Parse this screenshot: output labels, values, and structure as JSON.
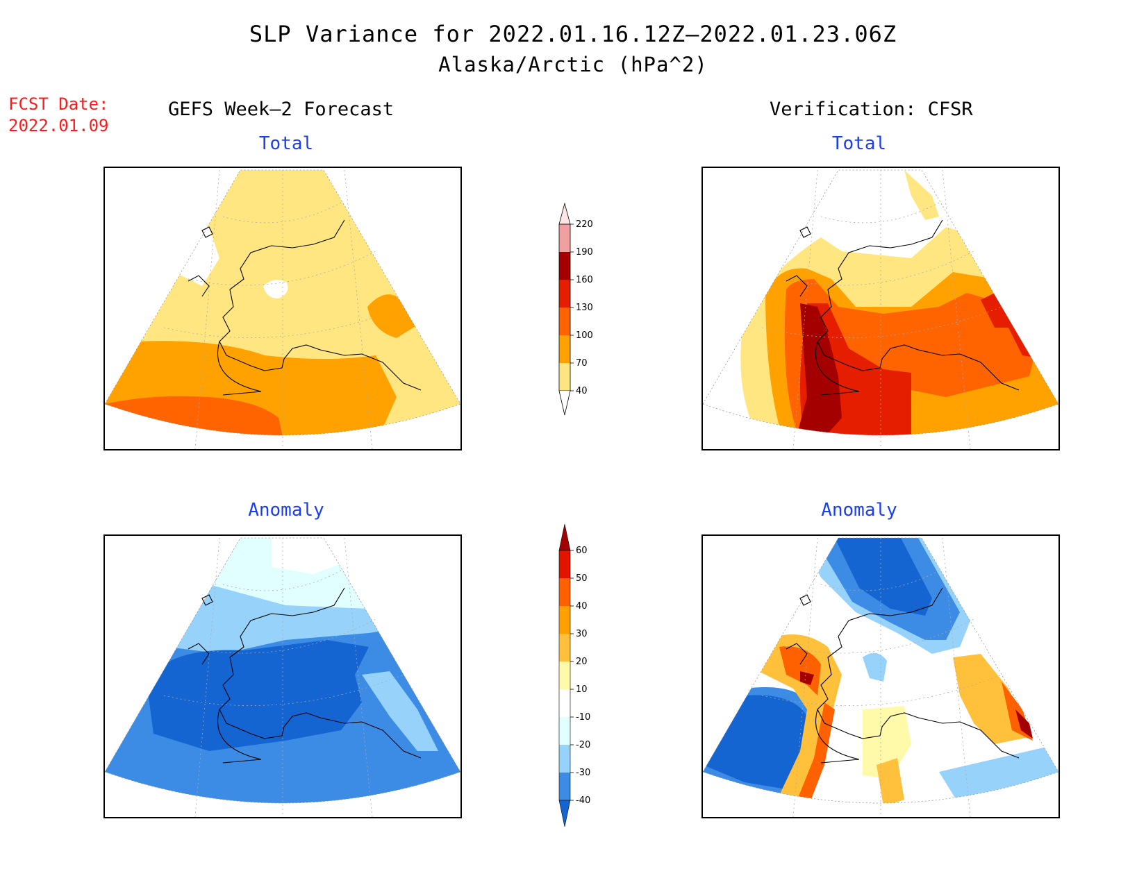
{
  "header": {
    "title": "SLP Variance for 2022.01.16.12Z–2022.01.23.06Z",
    "subtitle": "Alaska/Arctic (hPa^2)"
  },
  "forecast": {
    "label": "FCST Date:",
    "date": "2022.01.09"
  },
  "columns": {
    "left": "GEFS Week–2 Forecast",
    "right": "Verification: CFSR"
  },
  "panels": {
    "gefs_total": "Total",
    "cfsr_total": "Total",
    "gefs_anomaly": "Anomaly",
    "cfsr_anomaly": "Anomaly"
  },
  "colorbars": {
    "total": {
      "labels": [
        "40",
        "70",
        "100",
        "130",
        "160",
        "190",
        "220"
      ],
      "colors": [
        "#ffe680",
        "#ffa200",
        "#ff6400",
        "#e61e00",
        "#a50000",
        "#f0a0a0",
        "#ffe6e6"
      ]
    },
    "anomaly": {
      "labels": [
        "-40",
        "-30",
        "-20",
        "-10",
        "10",
        "20",
        "30",
        "40",
        "50",
        "60"
      ],
      "colors": [
        "#1464d2",
        "#3c8ce6",
        "#96d2fa",
        "#e1ffff",
        "#ffffff",
        "#fffaaa",
        "#ffc03c",
        "#ffa000",
        "#ff6000",
        "#e11400",
        "#a50000"
      ]
    }
  },
  "palette": {
    "title_text": "#000000",
    "forecast_text": "#ff1a1a",
    "panel_title_text": "#1a3ef0"
  }
}
